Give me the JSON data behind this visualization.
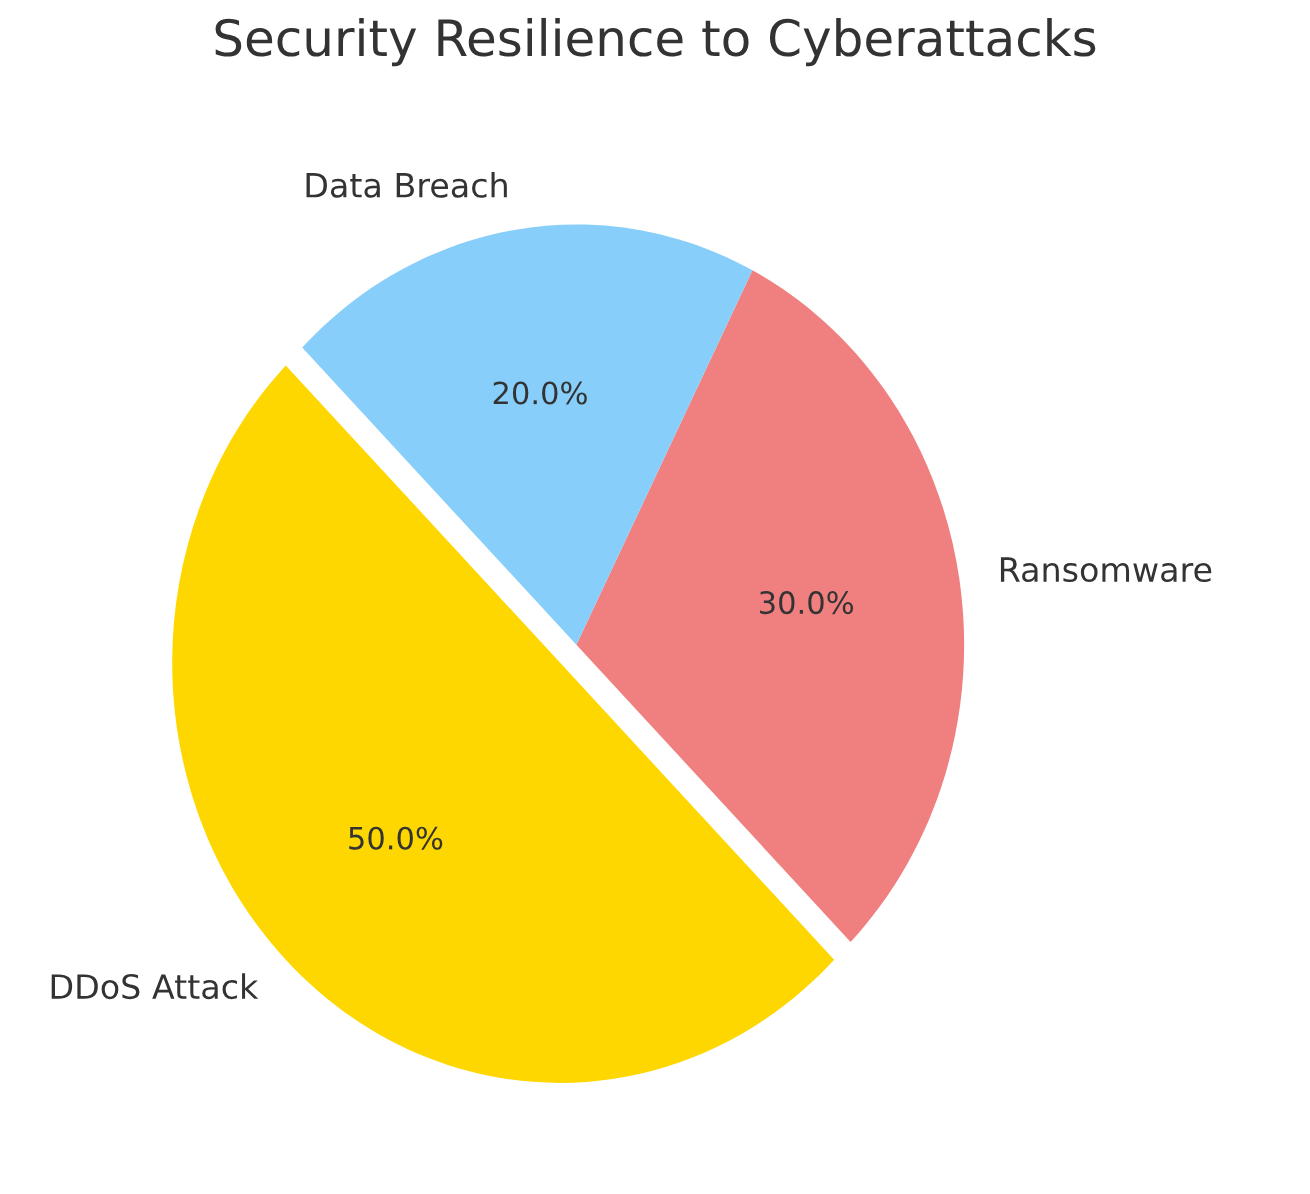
{
  "chart_data": {
    "type": "pie",
    "title": "Security Resilience to Cyberattacks",
    "categories": [
      "DDoS Attack",
      "Ransomware",
      "Data Breach"
    ],
    "values": [
      50,
      30,
      20
    ],
    "colors": [
      "#ffd700",
      "#f08080",
      "#87cefa"
    ],
    "value_labels": [
      "50.0%",
      "30.0%",
      "20.0%"
    ],
    "legend": false
  }
}
